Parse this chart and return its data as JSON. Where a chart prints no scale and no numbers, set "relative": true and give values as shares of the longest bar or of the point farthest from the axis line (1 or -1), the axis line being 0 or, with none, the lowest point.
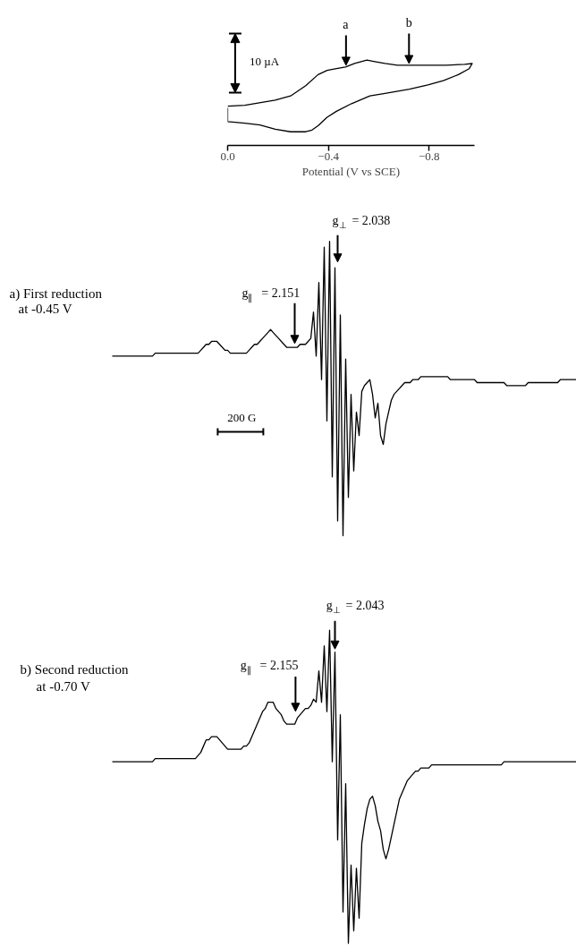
{
  "chart_data": [
    {
      "type": "line",
      "relative": true,
      "xlabel": "Potential (V vs SCE)",
      "xlim": [
        0.0,
        -0.98
      ],
      "xticks": [
        {
          "value": 0,
          "label": "0.0"
        },
        -0.4,
        -0.8
      ],
      "x": [
        0,
        -0.068,
        -0.189,
        -0.25,
        -0.31,
        -0.359,
        -0.395,
        -0.432,
        -0.468,
        -0.504,
        -0.553,
        -0.589,
        -0.625,
        -0.674,
        -0.722,
        -0.795,
        -0.868,
        -0.941,
        -0.971,
        -0.959,
        -0.916,
        -0.856,
        -0.795,
        -0.722,
        -0.625,
        -0.565,
        -0.492,
        -0.432,
        -0.395,
        -0.359,
        -0.335,
        -0.31,
        -0.25,
        -0.189,
        -0.128,
        -0.068,
        0,
        0.0
      ],
      "values": [
        0.46,
        0.47,
        0.53,
        0.58,
        0.7,
        0.83,
        0.88,
        0.9,
        0.92,
        0.96,
        1.0,
        0.98,
        0.96,
        0.94,
        0.94,
        0.94,
        0.94,
        0.95,
        0.96,
        0.9,
        0.83,
        0.76,
        0.71,
        0.66,
        0.61,
        0.58,
        0.49,
        0.4,
        0.33,
        0.23,
        0.18,
        0.16,
        0.16,
        0.19,
        0.24,
        0.26,
        0.28,
        0.44
      ],
      "color": "#000000",
      "annotations": [
        {
          "text": "a",
          "x": -0.47,
          "y": 0.92
        },
        {
          "text": "b",
          "x": -0.72,
          "y": 0.94
        },
        "10 µA"
      ]
    },
    {
      "type": "line",
      "relative": true,
      "title": "a) First reduction\nat -0.45 V",
      "color": "#000000",
      "categories": [
        null,
        null,
        null,
        null,
        null,
        null,
        null,
        null,
        null,
        null,
        null,
        null,
        null,
        null,
        null,
        null,
        null,
        null,
        null,
        null,
        null,
        null,
        null,
        null,
        null,
        null,
        null,
        null,
        null,
        null,
        null,
        null,
        null,
        null,
        null,
        null,
        null,
        null,
        null,
        null,
        null,
        null,
        null,
        null,
        null,
        null,
        null,
        null,
        null,
        null,
        null,
        null,
        null,
        null,
        null,
        null,
        null,
        null,
        null,
        null,
        null,
        null,
        null,
        null,
        null,
        null,
        null,
        null,
        null,
        null,
        null,
        null,
        null,
        null,
        null,
        null,
        null,
        null,
        null,
        null,
        null,
        null,
        null,
        null,
        null,
        null,
        null,
        null,
        null,
        null,
        null,
        null,
        null,
        null,
        null,
        null,
        null,
        null,
        null,
        null,
        null,
        null,
        null,
        null,
        null,
        null,
        null,
        null,
        null,
        null,
        null,
        null,
        null,
        null,
        null,
        null,
        null,
        null,
        null,
        null,
        null,
        null,
        null,
        null,
        null,
        null,
        null,
        null,
        null,
        null,
        null,
        null,
        null,
        null,
        null,
        null,
        null,
        null,
        null,
        null,
        null,
        null,
        null,
        null,
        null,
        null,
        null,
        null,
        null,
        null,
        null,
        null,
        null,
        null,
        null,
        null,
        null,
        null,
        null,
        null,
        null,
        null,
        null,
        null,
        null,
        null,
        null,
        null,
        null,
        null,
        null,
        null,
        null,
        null
      ],
      "values": [
        0.61,
        0.61,
        0.61,
        0.61,
        0.61,
        0.61,
        0.61,
        0.61,
        0.61,
        0.61,
        0.61,
        0.61,
        0.61,
        0.61,
        0.61,
        0.61,
        0.62,
        0.62,
        0.62,
        0.62,
        0.62,
        0.62,
        0.62,
        0.62,
        0.62,
        0.62,
        0.62,
        0.62,
        0.62,
        0.62,
        0.62,
        0.62,
        0.62,
        0.63,
        0.64,
        0.65,
        0.65,
        0.66,
        0.66,
        0.66,
        0.65,
        0.64,
        0.63,
        0.63,
        0.62,
        0.62,
        0.62,
        0.62,
        0.62,
        0.62,
        0.62,
        0.63,
        0.64,
        0.65,
        0.65,
        0.66,
        0.67,
        0.68,
        0.69,
        0.7,
        0.69,
        0.68,
        0.67,
        0.66,
        0.65,
        0.64,
        0.64,
        0.64,
        0.64,
        0.64,
        0.65,
        0.65,
        0.65,
        0.66,
        0.67,
        0.76,
        0.61,
        0.86,
        0.53,
        0.98,
        0.39,
        1.0,
        0.2,
        0.91,
        0.05,
        0.75,
        0.0,
        0.6,
        0.13,
        0.48,
        0.22,
        0.42,
        0.34,
        0.49,
        0.51,
        0.52,
        0.53,
        0.48,
        0.4,
        0.45,
        0.34,
        0.31,
        0.38,
        0.42,
        0.46,
        0.48,
        0.49,
        0.5,
        0.51,
        0.52,
        0.52,
        0.52,
        0.53,
        0.53,
        0.53,
        0.54,
        0.54,
        0.54,
        0.54,
        0.54,
        0.54,
        0.54,
        0.54,
        0.54,
        0.54,
        0.54,
        0.53,
        0.53,
        0.53,
        0.53,
        0.53,
        0.53,
        0.53,
        0.53,
        0.53,
        0.53,
        0.52,
        0.52,
        0.52,
        0.52,
        0.52,
        0.52,
        0.52,
        0.52,
        0.52,
        0.52,
        0.52,
        0.51,
        0.51,
        0.51,
        0.51,
        0.51,
        0.51,
        0.51,
        0.51,
        0.52,
        0.52,
        0.52,
        0.52,
        0.52,
        0.52,
        0.52,
        0.52,
        0.52,
        0.52,
        0.52,
        0.52,
        0.53,
        0.53,
        0.53,
        0.53,
        0.53,
        0.53,
        0.53
      ],
      "annotations": [
        "g$_{∥}$ = 2.151",
        "g$_{⊥}$ = 2.038",
        "200 G"
      ]
    },
    {
      "type": "line",
      "relative": true,
      "title": "b) Second reduction\nat -0.70 V",
      "color": "#000000",
      "categories": [
        null,
        null,
        null,
        null,
        null,
        null,
        null,
        null,
        null,
        null,
        null,
        null,
        null,
        null,
        null,
        null,
        null,
        null,
        null,
        null,
        null,
        null,
        null,
        null,
        null,
        null,
        null,
        null,
        null,
        null,
        null,
        null,
        null,
        null,
        null,
        null,
        null,
        null,
        null,
        null,
        null,
        null,
        null,
        null,
        null,
        null,
        null,
        null,
        null,
        null,
        null,
        null,
        null,
        null,
        null,
        null,
        null,
        null,
        null,
        null,
        null,
        null,
        null,
        null,
        null,
        null,
        null,
        null,
        null,
        null,
        null,
        null,
        null,
        null,
        null,
        null,
        null,
        null,
        null,
        null,
        null,
        null,
        null,
        null,
        null,
        null,
        null,
        null,
        null,
        null,
        null,
        null,
        null,
        null,
        null,
        null,
        null,
        null,
        null,
        null,
        null,
        null,
        null,
        null,
        null,
        null,
        null,
        null,
        null,
        null,
        null,
        null,
        null,
        null,
        null,
        null,
        null,
        null,
        null,
        null,
        null,
        null,
        null,
        null,
        null,
        null,
        null,
        null,
        null,
        null,
        null,
        null,
        null,
        null,
        null,
        null,
        null,
        null,
        null,
        null,
        null,
        null,
        null,
        null,
        null,
        null,
        null,
        null,
        null,
        null,
        null,
        null,
        null,
        null,
        null,
        null,
        null,
        null,
        null,
        null,
        null,
        null,
        null,
        null,
        null,
        null,
        null,
        null,
        null,
        null,
        null,
        null,
        null,
        null
      ],
      "values": [
        0.58,
        0.58,
        0.58,
        0.58,
        0.58,
        0.58,
        0.58,
        0.58,
        0.58,
        0.58,
        0.58,
        0.58,
        0.58,
        0.58,
        0.58,
        0.58,
        0.59,
        0.59,
        0.59,
        0.59,
        0.59,
        0.59,
        0.59,
        0.59,
        0.59,
        0.59,
        0.59,
        0.59,
        0.59,
        0.59,
        0.59,
        0.59,
        0.6,
        0.61,
        0.63,
        0.65,
        0.65,
        0.66,
        0.66,
        0.66,
        0.65,
        0.64,
        0.63,
        0.62,
        0.62,
        0.62,
        0.62,
        0.62,
        0.62,
        0.63,
        0.63,
        0.64,
        0.66,
        0.68,
        0.7,
        0.72,
        0.74,
        0.75,
        0.77,
        0.77,
        0.77,
        0.75,
        0.74,
        0.73,
        0.71,
        0.7,
        0.7,
        0.7,
        0.7,
        0.72,
        0.73,
        0.74,
        0.75,
        0.75,
        0.76,
        0.78,
        0.77,
        0.87,
        0.77,
        0.95,
        0.74,
        1.0,
        0.58,
        0.93,
        0.33,
        0.73,
        0.1,
        0.51,
        0.0,
        0.25,
        0.04,
        0.24,
        0.08,
        0.32,
        0.38,
        0.43,
        0.46,
        0.47,
        0.44,
        0.39,
        0.36,
        0.3,
        0.27,
        0.3,
        0.34,
        0.38,
        0.42,
        0.46,
        0.48,
        0.5,
        0.52,
        0.53,
        0.54,
        0.55,
        0.55,
        0.56,
        0.56,
        0.56,
        0.56,
        0.57,
        0.57,
        0.57,
        0.57,
        0.57,
        0.57,
        0.57,
        0.57,
        0.57,
        0.57,
        0.57,
        0.57,
        0.57,
        0.57,
        0.57,
        0.57,
        0.57,
        0.57,
        0.57,
        0.57,
        0.57,
        0.57,
        0.57,
        0.57,
        0.57,
        0.57,
        0.57,
        0.58,
        0.58,
        0.58,
        0.58,
        0.58,
        0.58,
        0.58,
        0.58,
        0.58,
        0.58,
        0.58,
        0.58,
        0.58,
        0.58,
        0.58,
        0.58,
        0.58,
        0.58,
        0.58,
        0.58,
        0.58,
        0.58,
        0.58,
        0.58,
        0.58,
        0.58,
        0.58,
        0.58
      ],
      "annotations": [
        "g$_{∥}$ = 2.155",
        "g$_{⊥}$ = 2.043"
      ]
    }
  ]
}
